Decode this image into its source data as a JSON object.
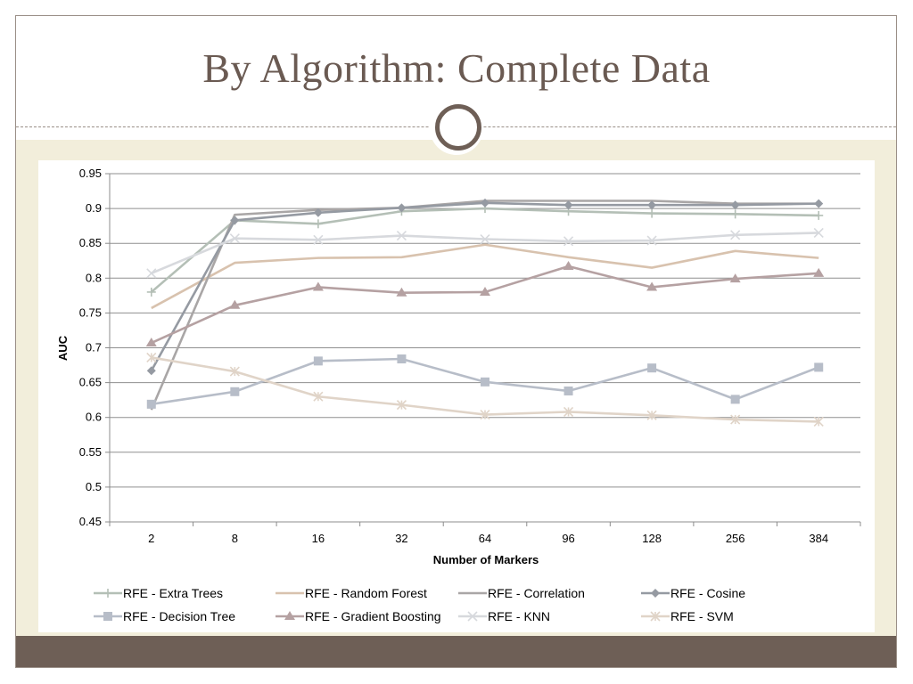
{
  "slide": {
    "title": "By Algorithm: Complete Data"
  },
  "chart_data": {
    "type": "line",
    "xlabel": "Number of Markers",
    "ylabel": "AUC",
    "categories": [
      "2",
      "8",
      "16",
      "32",
      "64",
      "96",
      "128",
      "256",
      "384"
    ],
    "ylim": [
      0.45,
      0.95
    ],
    "yticks": [
      "0.45",
      "0.5",
      "0.55",
      "0.6",
      "0.65",
      "0.7",
      "0.75",
      "0.8",
      "0.85",
      "0.9",
      "0.95"
    ],
    "grid": true,
    "legend_position": "bottom",
    "series": [
      {
        "name": "RFE - Extra Trees",
        "marker": "plus",
        "color": "#b4bfb6",
        "values": [
          0.78,
          0.883,
          0.878,
          0.896,
          0.9,
          0.896,
          0.893,
          0.892,
          0.89
        ]
      },
      {
        "name": "RFE - Random Forest",
        "marker": "none",
        "color": "#d8c2ae",
        "values": [
          0.757,
          0.822,
          0.829,
          0.83,
          0.848,
          0.83,
          0.815,
          0.839,
          0.829
        ]
      },
      {
        "name": "RFE - Correlation",
        "marker": "none",
        "color": "#a9a6a6",
        "values": [
          0.611,
          0.891,
          0.898,
          0.901,
          0.911,
          0.911,
          0.911,
          0.907,
          0.907
        ]
      },
      {
        "name": "RFE - Cosine",
        "marker": "diamond",
        "color": "#959aa2",
        "values": [
          0.667,
          0.883,
          0.894,
          0.901,
          0.908,
          0.905,
          0.905,
          0.905,
          0.907
        ]
      },
      {
        "name": "RFE - Decision Tree",
        "marker": "square",
        "color": "#b7bdc8",
        "values": [
          0.619,
          0.637,
          0.681,
          0.684,
          0.651,
          0.638,
          0.671,
          0.626,
          0.672
        ]
      },
      {
        "name": "RFE - Gradient Boosting",
        "marker": "triangle",
        "color": "#b5a1a2",
        "values": [
          0.707,
          0.761,
          0.787,
          0.779,
          0.78,
          0.817,
          0.787,
          0.799,
          0.807
        ]
      },
      {
        "name": "RFE - KNN",
        "marker": "x",
        "color": "#d7d9dd",
        "values": [
          0.807,
          0.857,
          0.855,
          0.861,
          0.856,
          0.853,
          0.854,
          0.862,
          0.865
        ]
      },
      {
        "name": "RFE - SVM",
        "marker": "star",
        "color": "#e0d4c8",
        "values": [
          0.686,
          0.666,
          0.63,
          0.618,
          0.604,
          0.608,
          0.603,
          0.597,
          0.594
        ]
      }
    ]
  }
}
